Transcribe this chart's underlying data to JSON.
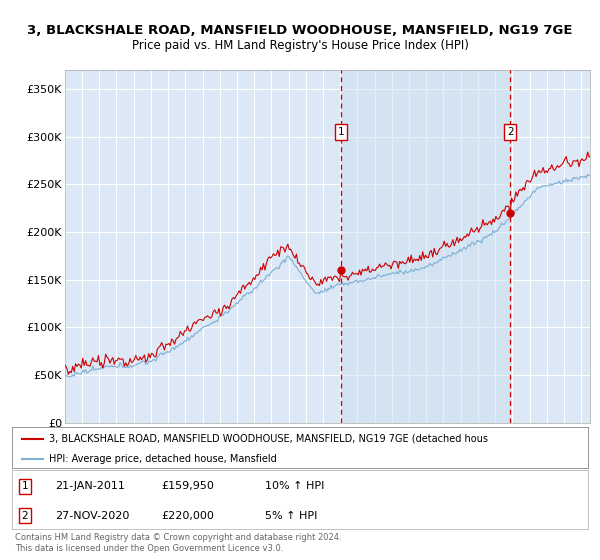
{
  "title_line1": "3, BLACKSHALE ROAD, MANSFIELD WOODHOUSE, MANSFIELD, NG19 7GE",
  "title_line2": "Price paid vs. HM Land Registry's House Price Index (HPI)",
  "bg_color": "#dce8f5",
  "grid_color": "#ffffff",
  "hpi_color": "#7bafd4",
  "price_color": "#cc0000",
  "vline_color": "#cc0000",
  "shade_color": "#cce0f0",
  "marker1_year": 2011,
  "marker1_month": 1,
  "marker1_day": 21,
  "marker1_price": 159950,
  "marker2_year": 2020,
  "marker2_month": 11,
  "marker2_day": 27,
  "marker2_price": 220000,
  "ylim_min": 0,
  "ylim_max": 370000,
  "yticks": [
    0,
    50000,
    100000,
    150000,
    200000,
    250000,
    300000,
    350000
  ],
  "ytick_labels": [
    "£0",
    "£50K",
    "£100K",
    "£150K",
    "£200K",
    "£250K",
    "£300K",
    "£350K"
  ],
  "legend1_text": "3, BLACKSHALE ROAD, MANSFIELD WOODHOUSE, MANSFIELD, NG19 7GE (detached hous",
  "legend2_text": "HPI: Average price, detached house, Mansfield",
  "annotation1_date": "21-JAN-2011",
  "annotation1_price": "£159,950",
  "annotation1_hpi": "10% ↑ HPI",
  "annotation2_date": "27-NOV-2020",
  "annotation2_price": "£220,000",
  "annotation2_hpi": "5% ↑ HPI",
  "footnote": "Contains HM Land Registry data © Crown copyright and database right 2024.\nThis data is licensed under the Open Government Licence v3.0.",
  "xstart_year": 1995,
  "xend_year": 2025
}
